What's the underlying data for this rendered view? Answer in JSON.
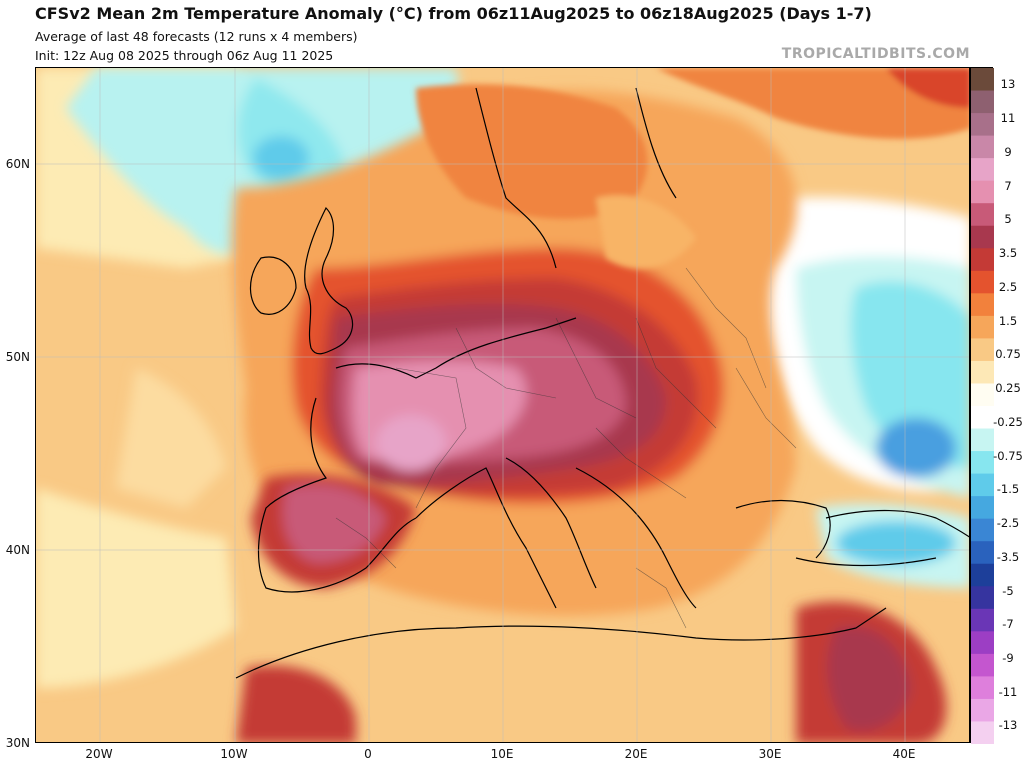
{
  "header": {
    "title": "CFSv2 Mean 2m Temperature Anomaly (°C) from 06z11Aug2025 to 06z18Aug2025 (Days 1-7)",
    "subtitle": "Average of last 48 forecasts (12 runs x 4 members)",
    "init": "Init: 12z Aug 08 2025 through 06z Aug 11 2025",
    "brand": "TROPICALTIDBITS.COM"
  },
  "axes": {
    "lat_labels": [
      "60N",
      "50N",
      "40N",
      "30N"
    ],
    "lon_labels": [
      "20W",
      "10W",
      "0",
      "10E",
      "20E",
      "30E",
      "40E"
    ]
  },
  "colorbar": {
    "labels": [
      "13",
      "11",
      "9",
      "7",
      "5",
      "3.5",
      "2.5",
      "1.5",
      "0.75",
      "0.25",
      "-0.25",
      "-0.75",
      "-1.5",
      "-2.5",
      "-3.5",
      "-5",
      "-7",
      "-9",
      "-11",
      "-13"
    ],
    "colors": [
      "#6b4a3a",
      "#8e6070",
      "#a8708a",
      "#c987a8",
      "#e7a4c8",
      "#e590b0",
      "#c85a78",
      "#a8384e",
      "#c43a36",
      "#e4532e",
      "#f2813c",
      "#f6a65a",
      "#f9c985",
      "#fde8b6",
      "#fffdf2",
      "#ffffff",
      "#c7f5f2",
      "#87e6ef",
      "#5fcbea",
      "#45a8e0",
      "#3a86d4",
      "#2a62bd",
      "#1d3f9a",
      "#36349f",
      "#6a36b6",
      "#9c3ec4",
      "#c456cf",
      "#de7fdc",
      "#eaa7e6",
      "#f4d0f0"
    ]
  },
  "legend_colors": {
    "strong_warm": "#b14a6a",
    "very_warm": "#e58fc4",
    "warm": "#d9442b",
    "mild_warm": "#f0843f",
    "slight_warm": "#f8b466",
    "near_zero": "#fdebb4",
    "cool": "#8fe8ee",
    "cold": "#4a9fe0"
  }
}
